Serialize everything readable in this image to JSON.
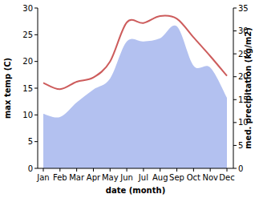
{
  "chart_data": {
    "type": "line",
    "categories": [
      "Jan",
      "Feb",
      "Mar",
      "Apr",
      "May",
      "Jun",
      "Jul",
      "Aug",
      "Sep",
      "Oct",
      "Nov",
      "Dec"
    ],
    "x_label": "date (month)",
    "y_label": "max temp (C)",
    "y2_label": "med. precipitation (kg/m2)",
    "series": [
      {
        "type": "area",
        "axis": "y2",
        "color": "#b3c1f0",
        "values": [
          11.9,
          11.2,
          14.4,
          17.2,
          19.6,
          27.7,
          27.7,
          28.4,
          31.0,
          22.4,
          22.0,
          15.4
        ]
      },
      {
        "type": "line",
        "color": "#cd5c5c",
        "values": [
          16.0,
          14.8,
          16.2,
          17.0,
          20.0,
          27.3,
          27.2,
          28.5,
          28.0,
          24.5,
          21.0,
          17.3
        ]
      }
    ],
    "ylim": [
      0,
      30
    ],
    "yticks": [
      0,
      5,
      10,
      15,
      20,
      25,
      30
    ],
    "y2lim": [
      0,
      35
    ],
    "y2ticks": [
      0,
      5,
      10,
      15,
      20,
      25,
      30,
      35
    ],
    "grid": false
  }
}
